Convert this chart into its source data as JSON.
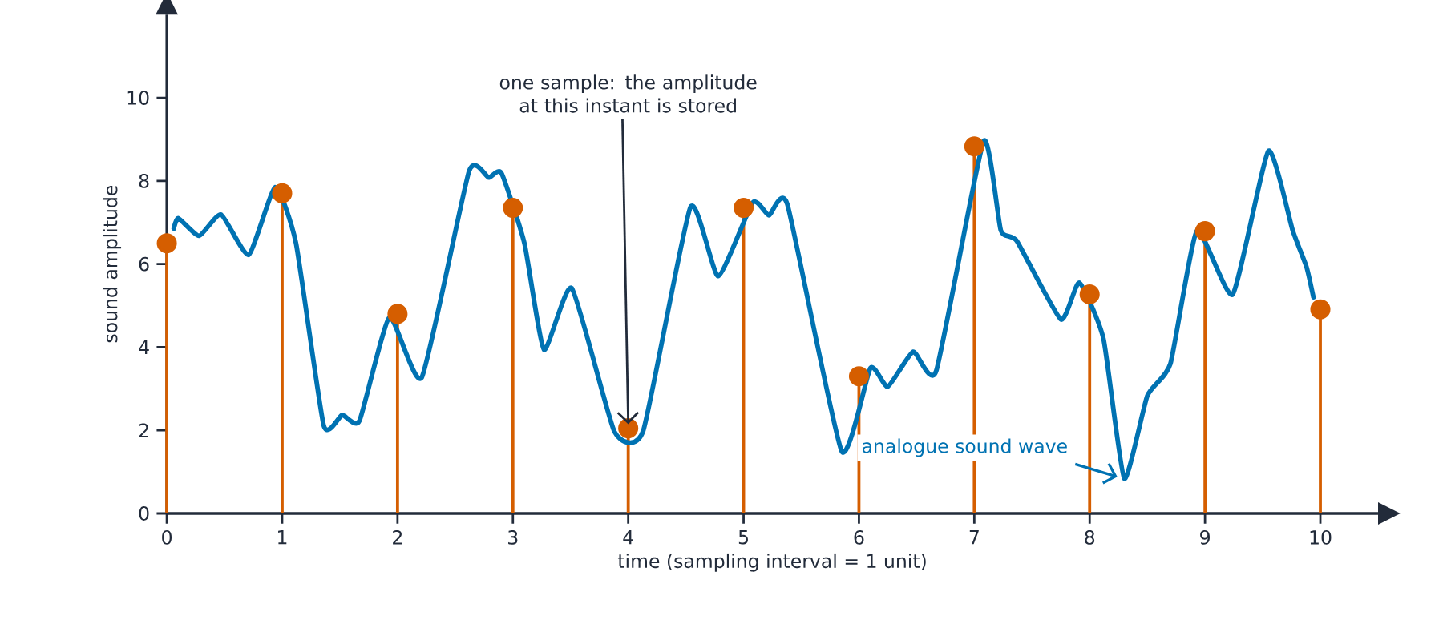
{
  "chart_data": {
    "type": "line",
    "xlabel": "time  (sampling interval = 1 unit)",
    "ylabel": "sound amplitude",
    "xlim": [
      0,
      10.5
    ],
    "ylim": [
      0,
      12
    ],
    "xticks": [
      0,
      1,
      2,
      3,
      4,
      5,
      6,
      7,
      8,
      9,
      10
    ],
    "yticks": [
      0,
      2,
      4,
      6,
      8,
      10
    ],
    "series": [
      {
        "name": "analogue sound wave",
        "color": "#0072b2",
        "marker": "none",
        "x": [
          0.06,
          0.1,
          0.28,
          0.47,
          0.71,
          0.94,
          1.12,
          1.36,
          1.52,
          1.67,
          1.93,
          2.21,
          2.62,
          2.79,
          2.9,
          3.1,
          3.27,
          3.51,
          3.88,
          4.13,
          4.54,
          4.78,
          5.08,
          5.22,
          5.38,
          5.85,
          6.1,
          6.25,
          6.47,
          6.67,
          7.08,
          7.23,
          7.37,
          7.75,
          7.91,
          8.12,
          8.3,
          8.5,
          8.7,
          8.93,
          9.24,
          9.55,
          9.76,
          9.88,
          9.94
        ],
        "values": [
          6.85,
          7.1,
          6.68,
          7.19,
          6.22,
          7.85,
          6.5,
          2.12,
          2.37,
          2.23,
          4.72,
          3.27,
          8.23,
          8.08,
          8.19,
          6.5,
          3.94,
          5.42,
          1.97,
          1.99,
          7.37,
          5.71,
          7.48,
          7.17,
          7.43,
          1.5,
          3.5,
          3.05,
          3.89,
          3.43,
          8.95,
          6.81,
          6.55,
          4.67,
          5.55,
          4.2,
          0.84,
          2.83,
          3.6,
          6.8,
          5.27,
          8.72,
          6.81,
          5.93,
          5.2
        ]
      },
      {
        "type": "lollipop",
        "color": "#d55e00",
        "marker": "circle",
        "x": [
          0,
          1,
          2,
          3,
          4,
          5,
          6,
          7,
          8,
          9,
          10
        ],
        "values": [
          6.5,
          7.7,
          4.8,
          7.35,
          2.05,
          7.35,
          3.3,
          8.83,
          5.27,
          6.79,
          4.91
        ]
      }
    ],
    "annotations": [
      {
        "text": "one sample: the amplitude at this instant is stored",
        "x": 4,
        "y": 2.05
      }
    ]
  }
}
